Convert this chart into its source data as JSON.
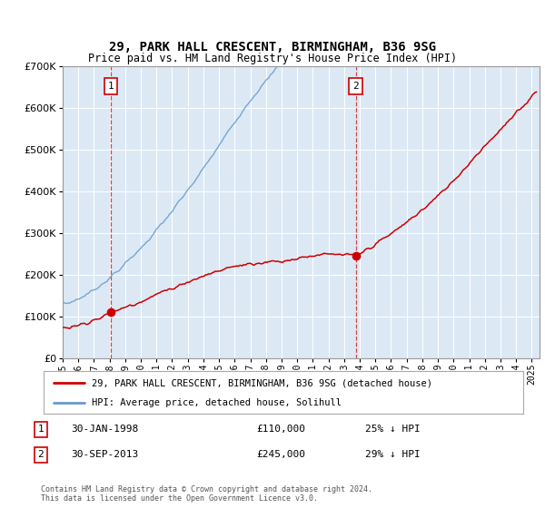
{
  "title": "29, PARK HALL CRESCENT, BIRMINGHAM, B36 9SG",
  "subtitle": "Price paid vs. HM Land Registry's House Price Index (HPI)",
  "plot_bg_color": "#dce9f5",
  "hpi_color": "#6699cc",
  "price_color": "#cc0000",
  "sale1_date_num": 1998.08,
  "sale1_price": 110000,
  "sale2_date_num": 2013.75,
  "sale2_price": 245000,
  "ylim": [
    0,
    700000
  ],
  "yticks": [
    0,
    100000,
    200000,
    300000,
    400000,
    500000,
    600000,
    700000
  ],
  "ytick_labels": [
    "£0",
    "£100K",
    "£200K",
    "£300K",
    "£400K",
    "£500K",
    "£600K",
    "£700K"
  ],
  "xlim_start": 1995.0,
  "xlim_end": 2025.5,
  "legend_label_red": "29, PARK HALL CRESCENT, BIRMINGHAM, B36 9SG (detached house)",
  "legend_label_blue": "HPI: Average price, detached house, Solihull",
  "annotation1_label": "1",
  "annotation1_date": "30-JAN-1998",
  "annotation1_price": "£110,000",
  "annotation1_hpi": "25% ↓ HPI",
  "annotation2_label": "2",
  "annotation2_date": "30-SEP-2013",
  "annotation2_price": "£245,000",
  "annotation2_hpi": "29% ↓ HPI",
  "footer": "Contains HM Land Registry data © Crown copyright and database right 2024.\nThis data is licensed under the Open Government Licence v3.0."
}
